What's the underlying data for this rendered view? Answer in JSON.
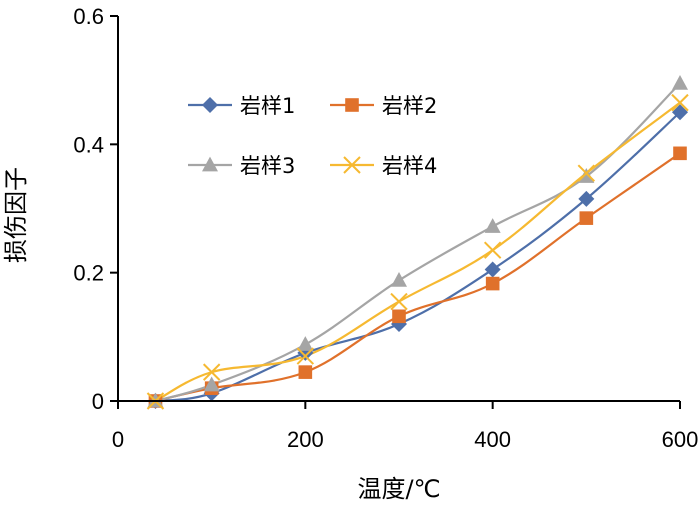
{
  "chart_data": {
    "type": "line",
    "title": "",
    "xlabel": "温度/℃",
    "ylabel": "损伤因子",
    "xlim": [
      0,
      600
    ],
    "ylim": [
      0,
      0.6
    ],
    "xticks": [
      "0",
      "200",
      "400",
      "600"
    ],
    "yticks": [
      "0",
      "0.2",
      "0.4",
      "0.6"
    ],
    "grid": false,
    "legend_position": "upper-left",
    "x": [
      40,
      100,
      200,
      300,
      400,
      500,
      600
    ],
    "series": [
      {
        "name": "岩样1",
        "marker": "diamond",
        "color": "#4e6fa9",
        "values": [
          0.0,
          0.012,
          0.075,
          0.12,
          0.205,
          0.315,
          0.45
        ]
      },
      {
        "name": "岩样2",
        "marker": "square",
        "color": "#e0712b",
        "values": [
          0.0,
          0.02,
          0.045,
          0.132,
          0.183,
          0.285,
          0.386
        ]
      },
      {
        "name": "岩样3",
        "marker": "triangle",
        "color": "#a5a5a5",
        "values": [
          0.0,
          0.025,
          0.088,
          0.188,
          0.272,
          0.35,
          0.495
        ]
      },
      {
        "name": "岩样4",
        "marker": "x",
        "color": "#f6b931",
        "values": [
          0.0,
          0.045,
          0.07,
          0.155,
          0.235,
          0.355,
          0.465
        ]
      }
    ]
  }
}
